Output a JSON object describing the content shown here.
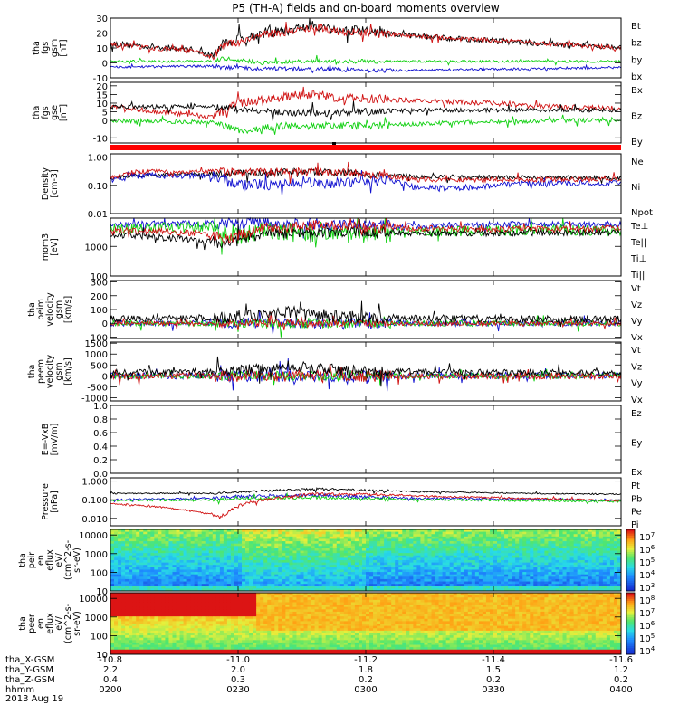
{
  "title": "P5 (TH-A) fields and on-board moments overview",
  "colors": {
    "black": "#000000",
    "red": "#d01010",
    "green": "#10d010",
    "blue": "#1010d0",
    "darkred": "#a00000",
    "bg": "#ffffff"
  },
  "chart_data": [
    {
      "type": "line",
      "panel": "fgs_gsm",
      "ylabel": [
        "tha",
        "fgs",
        "gsm",
        "[nT]"
      ],
      "yticks": [
        30,
        20,
        10,
        0,
        -10
      ],
      "ylim": [
        -10,
        30
      ],
      "ylog": false,
      "legend": [
        {
          "label": "Bt",
          "color": "#000000"
        },
        {
          "label": "bz",
          "color": "#d01010"
        },
        {
          "label": "by",
          "color": "#10d010"
        },
        {
          "label": "bx",
          "color": "#1010d0"
        }
      ],
      "series": [
        {
          "name": "Bt",
          "color": "#000000",
          "x": [
            0,
            0.08,
            0.16,
            0.2,
            0.22,
            0.25,
            0.3,
            0.35,
            0.4,
            0.45,
            0.5,
            0.55,
            0.6,
            0.7,
            0.8,
            0.9,
            1
          ],
          "y": [
            13,
            11,
            9,
            5,
            12,
            16,
            20,
            22,
            25,
            22,
            21,
            19,
            18,
            16,
            14,
            12,
            11
          ],
          "noise": 2
        },
        {
          "name": "bz",
          "color": "#d01010",
          "x": [
            0,
            0.08,
            0.16,
            0.2,
            0.22,
            0.3,
            0.35,
            0.4,
            0.45,
            0.5,
            0.6,
            0.7,
            0.8,
            0.9,
            1
          ],
          "y": [
            12,
            10,
            8,
            4,
            11,
            19,
            21,
            24,
            21,
            20,
            18,
            16,
            14,
            12,
            10
          ],
          "noise": 1.5
        },
        {
          "name": "by",
          "color": "#10d010",
          "x": [
            0,
            0.2,
            0.22,
            0.3,
            0.4,
            0.5,
            0.6,
            0.8,
            1
          ],
          "y": [
            1,
            1,
            3,
            0,
            1,
            1,
            1,
            1,
            1
          ],
          "noise": 0.8
        },
        {
          "name": "bx",
          "color": "#1010d0",
          "x": [
            0,
            0.2,
            0.22,
            0.3,
            0.4,
            0.5,
            0.6,
            0.8,
            1
          ],
          "y": [
            -3,
            -2,
            -3,
            -4,
            -4,
            -5,
            -5,
            -4,
            -3
          ],
          "noise": 0.8
        }
      ]
    },
    {
      "type": "line",
      "panel": "fgs_gse",
      "ylabel": [
        "tha",
        "fgs",
        "gse",
        "[nT]"
      ],
      "yticks": [
        20,
        15,
        10,
        5,
        0,
        -10
      ],
      "ylim": [
        -13,
        22
      ],
      "ylog": false,
      "legend": [
        {
          "label": "Bx",
          "color": "#000000"
        },
        {
          "label": "Bz",
          "color": "#d01010"
        },
        {
          "label": "By",
          "color": "#10d010"
        }
      ],
      "series": [
        {
          "name": "Bz",
          "color": "#d01010",
          "x": [
            0,
            0.1,
            0.2,
            0.25,
            0.35,
            0.4,
            0.45,
            0.55,
            0.65,
            0.75,
            0.85,
            1
          ],
          "y": [
            8,
            5,
            2,
            10,
            14,
            15,
            13,
            12,
            11,
            10,
            8,
            7
          ],
          "noise": 1.5
        },
        {
          "name": "Bx",
          "color": "#000000",
          "x": [
            0,
            0.2,
            0.3,
            0.4,
            0.5,
            0.6,
            0.8,
            1
          ],
          "y": [
            8,
            8,
            5,
            4,
            5,
            6,
            6,
            6
          ],
          "noise": 1.2
        },
        {
          "name": "By",
          "color": "#10d010",
          "x": [
            0,
            0.2,
            0.25,
            0.35,
            0.5,
            0.7,
            0.9,
            1
          ],
          "y": [
            0,
            -1,
            -6,
            -3,
            -3,
            -1,
            0,
            0
          ],
          "noise": 1.2
        }
      ]
    },
    {
      "type": "line",
      "panel": "density",
      "ylabel": [
        "Density",
        "[cm-3]"
      ],
      "yticks": [
        "1.00",
        "0.10",
        "0.01"
      ],
      "ylim": [
        0.01,
        1.3
      ],
      "ylog": true,
      "legend": [
        {
          "label": "Ne",
          "color": "#d01010"
        },
        {
          "label": "Ni",
          "color": "#000000"
        },
        {
          "label": "Npot",
          "color": "#1010d0"
        }
      ],
      "series": [
        {
          "name": "Ni",
          "color": "#000000",
          "x": [
            0,
            0.02,
            0.05,
            0.2,
            0.35,
            0.4,
            0.5,
            0.6,
            0.8,
            1
          ],
          "y": [
            0.18,
            0.2,
            0.22,
            0.25,
            0.3,
            0.3,
            0.25,
            0.2,
            0.19,
            0.18
          ],
          "noise": 0.08,
          "lognoise": true
        },
        {
          "name": "Npot",
          "color": "#1010d0",
          "x": [
            0,
            0.05,
            0.2,
            0.25,
            0.35,
            0.45,
            0.55,
            0.6,
            0.7,
            0.8,
            1
          ],
          "y": [
            0.16,
            0.22,
            0.22,
            0.1,
            0.12,
            0.12,
            0.15,
            0.08,
            0.08,
            0.12,
            0.12
          ],
          "noise": 0.12,
          "lognoise": true
        },
        {
          "name": "Ne",
          "color": "#d01010",
          "x": [
            0,
            0.02,
            0.05,
            0.2,
            0.3,
            0.4,
            0.5,
            0.55,
            0.6,
            0.8,
            1
          ],
          "y": [
            0.18,
            0.22,
            0.3,
            0.3,
            0.28,
            0.3,
            0.25,
            0.2,
            0.16,
            0.16,
            0.16
          ],
          "noise": 0.1,
          "lognoise": true
        }
      ]
    },
    {
      "type": "line",
      "panel": "temperature",
      "ylabel": [
        "mom3",
        "[eV]"
      ],
      "yticks": [
        "1000",
        "100"
      ],
      "ylim": [
        100,
        9000
      ],
      "ylog": true,
      "legend": [
        {
          "label": "Te⊥",
          "color": "#d01010"
        },
        {
          "label": "Te||",
          "color": "#000000"
        },
        {
          "label": "Ti⊥",
          "color": "#1010d0"
        },
        {
          "label": "Ti||",
          "color": "#10d010"
        }
      ],
      "series": [
        {
          "name": "Ti⊥",
          "color": "#1010d0",
          "x": [
            0,
            0.2,
            0.3,
            0.4,
            0.5,
            0.6,
            0.8,
            1
          ],
          "y": [
            5500,
            6000,
            6500,
            5500,
            5000,
            5000,
            5500,
            5500
          ],
          "noise": 0.12,
          "lognoise": true
        },
        {
          "name": "Ti||",
          "color": "#10d010",
          "x": [
            0,
            0.2,
            0.25,
            0.3,
            0.4,
            0.5,
            0.6,
            0.8,
            1
          ],
          "y": [
            4000,
            4500,
            2200,
            3500,
            2500,
            2500,
            3000,
            3500,
            3500
          ],
          "noise": 0.2,
          "lognoise": true
        },
        {
          "name": "Te||",
          "color": "#000000",
          "x": [
            0,
            0.1,
            0.2,
            0.22,
            0.3,
            0.4,
            0.5,
            0.6,
            0.8,
            1
          ],
          "y": [
            2500,
            2000,
            1500,
            1000,
            2500,
            3000,
            3000,
            2800,
            2800,
            3000
          ],
          "noise": 0.12,
          "lognoise": true
        },
        {
          "name": "Te⊥",
          "color": "#d01010",
          "x": [
            0,
            0.1,
            0.2,
            0.22,
            0.3,
            0.4,
            0.5,
            0.6,
            0.8,
            1
          ],
          "y": [
            3500,
            3200,
            2500,
            1500,
            4000,
            5000,
            4500,
            4000,
            3800,
            4000
          ],
          "noise": 0.12,
          "lognoise": true
        }
      ]
    },
    {
      "type": "line",
      "panel": "peim_velocity",
      "ylabel": [
        "tha",
        "peim",
        "velocity",
        "gsm",
        "[km/s]"
      ],
      "yticks": [
        300,
        200,
        100,
        0,
        -100
      ],
      "ylim": [
        -110,
        310
      ],
      "ylog": false,
      "legend": [
        {
          "label": "Vt",
          "color": "#000000"
        },
        {
          "label": "Vz",
          "color": "#d01010"
        },
        {
          "label": "Vy",
          "color": "#10d010"
        },
        {
          "label": "Vx",
          "color": "#1010d0"
        }
      ],
      "series": [
        {
          "name": "Vx",
          "color": "#1010d0",
          "x": [
            0,
            0.5,
            1
          ],
          "y": [
            0,
            0,
            0
          ],
          "noise": 20
        },
        {
          "name": "Vy",
          "color": "#10d010",
          "x": [
            0,
            0.5,
            1
          ],
          "y": [
            0,
            0,
            0
          ],
          "noise": 20
        },
        {
          "name": "Vz",
          "color": "#d01010",
          "x": [
            0,
            0.5,
            1
          ],
          "y": [
            0,
            0,
            0
          ],
          "noise": 15
        },
        {
          "name": "Vt",
          "color": "#000000",
          "x": [
            0,
            0.2,
            0.3,
            0.35,
            0.4,
            0.5,
            0.6,
            0.8,
            1
          ],
          "y": [
            30,
            40,
            60,
            80,
            60,
            40,
            40,
            30,
            30
          ],
          "noise": 25
        }
      ]
    },
    {
      "type": "line",
      "panel": "peem_velocity",
      "ylabel": [
        "tha",
        "peem",
        "velocity",
        "gsm",
        "[km/s]"
      ],
      "yticks": [
        1500,
        1000,
        500,
        0,
        -500,
        -1000
      ],
      "ylim": [
        -1150,
        1550
      ],
      "ylog": false,
      "legend": [
        {
          "label": "Vt",
          "color": "#000000"
        },
        {
          "label": "Vz",
          "color": "#d01010"
        },
        {
          "label": "Vy",
          "color": "#10d010"
        },
        {
          "label": "Vx",
          "color": "#1010d0"
        }
      ],
      "series": [
        {
          "name": "Vx",
          "color": "#1010d0",
          "x": [
            0,
            0.5,
            1
          ],
          "y": [
            0,
            0,
            0
          ],
          "noise": 150
        },
        {
          "name": "Vy",
          "color": "#10d010",
          "x": [
            0,
            0.5,
            1
          ],
          "y": [
            0,
            0,
            0
          ],
          "noise": 130
        },
        {
          "name": "Vz",
          "color": "#d01010",
          "x": [
            0,
            0.5,
            1
          ],
          "y": [
            0,
            0,
            0
          ],
          "noise": 150
        },
        {
          "name": "Vt",
          "color": "#000000",
          "x": [
            0,
            0.2,
            0.3,
            0.35,
            0.4,
            0.5,
            0.6,
            0.8,
            1
          ],
          "y": [
            150,
            200,
            350,
            450,
            350,
            200,
            200,
            150,
            150
          ],
          "noise": 140
        }
      ]
    },
    {
      "type": "line",
      "panel": "efield",
      "ylabel": [
        "E=-VxB",
        "[mV/m]"
      ],
      "yticks": [
        "1.0",
        "0.8",
        "0.6",
        "0.4",
        "0.2",
        "0.0"
      ],
      "ylim": [
        0,
        1
      ],
      "ylog": false,
      "legend": [
        {
          "label": "Ez",
          "color": "#d01010"
        },
        {
          "label": "Ey",
          "color": "#10d010"
        },
        {
          "label": "Ex",
          "color": "#1010d0"
        }
      ],
      "series": []
    },
    {
      "type": "line",
      "panel": "pressure",
      "ylabel": [
        "Pressure",
        "[nPa]"
      ],
      "yticks": [
        "1.000",
        "0.100",
        "0.010"
      ],
      "ylim": [
        0.004,
        1.5
      ],
      "ylog": true,
      "legend": [
        {
          "label": "Pt",
          "color": "#000000"
        },
        {
          "label": "Pb",
          "color": "#d01010"
        },
        {
          "label": "Pe",
          "color": "#10d010"
        },
        {
          "label": "Pi",
          "color": "#1010d0"
        }
      ],
      "series": [
        {
          "name": "Pt",
          "color": "#000000",
          "x": [
            0,
            0.2,
            0.3,
            0.4,
            0.5,
            0.6,
            0.8,
            1
          ],
          "y": [
            0.22,
            0.22,
            0.3,
            0.38,
            0.32,
            0.27,
            0.22,
            0.2
          ],
          "noise": 0.04,
          "lognoise": true
        },
        {
          "name": "Pi",
          "color": "#1010d0",
          "x": [
            0,
            0.2,
            0.3,
            0.4,
            0.5,
            0.6,
            0.8,
            1
          ],
          "y": [
            0.1,
            0.12,
            0.16,
            0.18,
            0.14,
            0.12,
            0.11,
            0.09
          ],
          "noise": 0.06,
          "lognoise": true
        },
        {
          "name": "Pe",
          "color": "#10d010",
          "x": [
            0,
            0.2,
            0.3,
            0.4,
            0.5,
            0.6,
            0.8,
            1
          ],
          "y": [
            0.09,
            0.1,
            0.12,
            0.13,
            0.11,
            0.1,
            0.09,
            0.08
          ],
          "noise": 0.06,
          "lognoise": true
        },
        {
          "name": "Pb",
          "color": "#d01010",
          "x": [
            0,
            0.1,
            0.18,
            0.22,
            0.3,
            0.4,
            0.5,
            0.6,
            0.8,
            1
          ],
          "y": [
            0.06,
            0.04,
            0.02,
            0.01,
            0.1,
            0.2,
            0.2,
            0.16,
            0.12,
            0.09
          ],
          "noise": 0.05,
          "lognoise": true
        }
      ]
    },
    {
      "type": "heatmap",
      "panel": "peir_eflux",
      "ylabel": [
        "tha",
        "peir",
        "en",
        "eflux",
        "eV/",
        "(cm^2-s-",
        "sr-eV)"
      ],
      "yticks": [
        "10000",
        "1000",
        "100",
        "10"
      ],
      "ylim": [
        10,
        20000
      ],
      "ylog": true,
      "colorbar_ticks": [
        "10^7",
        "10^6",
        "10^5",
        "10^4",
        "10^3"
      ]
    },
    {
      "type": "heatmap",
      "panel": "peer_eflux",
      "ylabel": [
        "tha",
        "peer",
        "en",
        "eflux",
        "eV/",
        "(cm^2-s-",
        "sr-eV)"
      ],
      "yticks": [
        "10000",
        "1000",
        "100",
        "10"
      ],
      "ylim": [
        10,
        20000
      ],
      "ylog": true,
      "colorbar_ticks": [
        "10^8",
        "10^7",
        "10^6",
        "10^5",
        "10^4"
      ]
    }
  ],
  "xaxis": {
    "tick_rows": [
      {
        "label": "tha_X-GSM",
        "values": [
          "-10.8",
          "-11.0",
          "-11.2",
          "-11.4",
          "-11.6"
        ]
      },
      {
        "label": "tha_Y-GSM",
        "values": [
          "2.2",
          "2.0",
          "1.8",
          "1.5",
          "1.2"
        ]
      },
      {
        "label": "tha_Z-GSM",
        "values": [
          "0.4",
          "0.3",
          "0.2",
          "0.2",
          "0.2"
        ]
      },
      {
        "label": "hhmm",
        "values": [
          "0200",
          "0230",
          "0300",
          "0330",
          "0400"
        ]
      }
    ],
    "date": "2013 Aug 19",
    "range": [
      "0200",
      "0400"
    ]
  }
}
